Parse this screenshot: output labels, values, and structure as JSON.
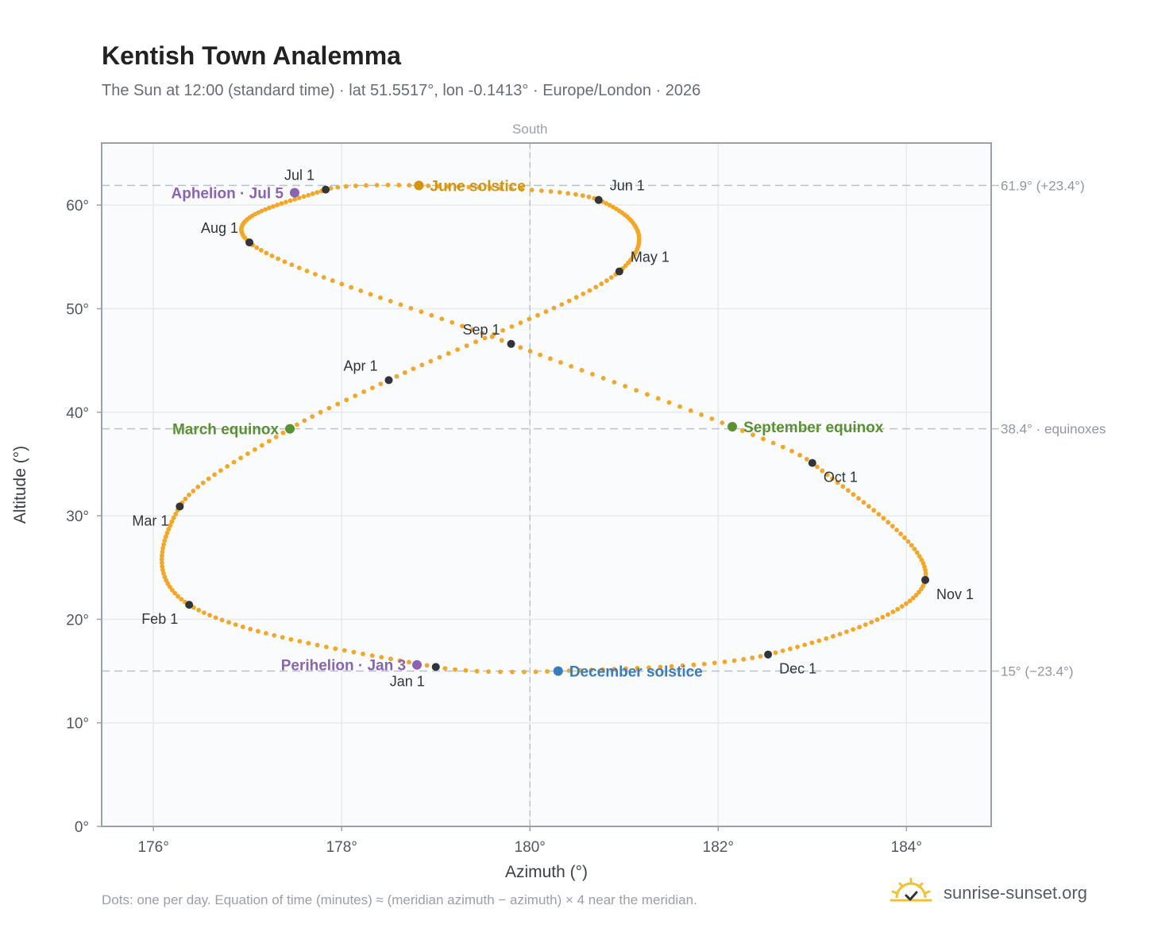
{
  "title": "Kentish Town Analemma",
  "subtitle": "The Sun at 12:00 (standard time) · lat 51.5517°, lon -0.1413° · Europe/London · 2026",
  "footnote": "Dots: one per day. Equation of time (minutes) ≈ (meridian azimuth − azimuth) × 4 near the meridian.",
  "brand": {
    "name": "sunrise-sunset.org",
    "icon": "sun-logo-icon"
  },
  "colors": {
    "path": "#f5a623",
    "month_marker": "#2f353b",
    "solstice_june": "#d4940c",
    "solstice_december": "#3a7bbf",
    "equinox": "#5a9131",
    "apsis": "#8a63b5",
    "reference_line": "#b8c2cc",
    "plot_background": "#f9fbfd",
    "grid": "#e6eaee",
    "frame": "#98a2ae"
  },
  "chart_data": {
    "type": "scatter",
    "title": "Kentish Town Analemma",
    "subtitle": "The Sun at 12:00 (standard time) · lat 51.5517°, lon -0.1413° · Europe/London · 2026",
    "xlabel": "Azimuth (°)",
    "ylabel": "Altitude (°)",
    "xlim": [
      175.45,
      184.9
    ],
    "ylim": [
      0,
      66
    ],
    "x_ticks": [
      176,
      178,
      180,
      182,
      184
    ],
    "x_tick_labels": [
      "176°",
      "178°",
      "180°",
      "182°",
      "184°"
    ],
    "y_ticks": [
      0,
      10,
      20,
      30,
      40,
      50,
      60
    ],
    "y_tick_labels": [
      "0°",
      "10°",
      "20°",
      "30°",
      "40°",
      "50°",
      "60°"
    ],
    "grid": true,
    "meridian": {
      "azimuth": 180,
      "label": "South"
    },
    "reference_lines": [
      {
        "altitude": 61.9,
        "label": "61.9° (+23.4°)"
      },
      {
        "altitude": 38.4,
        "label": "38.4° · equinoxes"
      },
      {
        "altitude": 15.0,
        "label": "15° (−23.4°)"
      }
    ],
    "series": [
      {
        "kind": "daily-path",
        "points_per_year": 365,
        "anchors": [
          {
            "day": 1,
            "az": 179.0,
            "alt": 15.4
          },
          {
            "day": 32,
            "az": 176.38,
            "alt": 21.4
          },
          {
            "day": 60,
            "az": 176.28,
            "alt": 30.9
          },
          {
            "day": 79,
            "az": 177.45,
            "alt": 38.4
          },
          {
            "day": 91,
            "az": 178.5,
            "alt": 43.1
          },
          {
            "day": 121,
            "az": 180.95,
            "alt": 53.6
          },
          {
            "day": 152,
            "az": 180.73,
            "alt": 60.5
          },
          {
            "day": 172,
            "az": 178.82,
            "alt": 61.9
          },
          {
            "day": 182,
            "az": 177.83,
            "alt": 61.5
          },
          {
            "day": 213,
            "az": 177.02,
            "alt": 56.4
          },
          {
            "day": 244,
            "az": 179.8,
            "alt": 46.6
          },
          {
            "day": 265,
            "az": 182.15,
            "alt": 38.6
          },
          {
            "day": 274,
            "az": 183.0,
            "alt": 35.1
          },
          {
            "day": 305,
            "az": 184.2,
            "alt": 23.8
          },
          {
            "day": 335,
            "az": 182.53,
            "alt": 16.6
          },
          {
            "day": 355,
            "az": 180.3,
            "alt": 15.0
          }
        ]
      }
    ],
    "month_markers": [
      {
        "label": "Jan 1",
        "az": 179.0,
        "alt": 15.4,
        "label_pos": "below-left"
      },
      {
        "label": "Feb 1",
        "az": 176.38,
        "alt": 21.4,
        "label_pos": "below-left"
      },
      {
        "label": "Mar 1",
        "az": 176.28,
        "alt": 30.9,
        "label_pos": "below-left"
      },
      {
        "label": "Apr 1",
        "az": 178.5,
        "alt": 43.1,
        "label_pos": "above-left"
      },
      {
        "label": "May 1",
        "az": 180.95,
        "alt": 53.6,
        "label_pos": "above-right"
      },
      {
        "label": "Jun 1",
        "az": 180.73,
        "alt": 60.5,
        "label_pos": "above-right"
      },
      {
        "label": "Jul 1",
        "az": 177.83,
        "alt": 61.5,
        "label_pos": "above-left"
      },
      {
        "label": "Aug 1",
        "az": 177.02,
        "alt": 56.4,
        "label_pos": "above-left"
      },
      {
        "label": "Sep 1",
        "az": 179.8,
        "alt": 46.6,
        "label_pos": "above-left"
      },
      {
        "label": "Oct 1",
        "az": 183.0,
        "alt": 35.1,
        "label_pos": "below-right"
      },
      {
        "label": "Nov 1",
        "az": 184.2,
        "alt": 23.8,
        "label_pos": "below-right"
      },
      {
        "label": "Dec 1",
        "az": 182.53,
        "alt": 16.6,
        "label_pos": "below-right"
      }
    ],
    "events": [
      {
        "label": "June solstice",
        "az": 178.82,
        "alt": 61.9,
        "color_key": "solstice_june",
        "label_pos": "right"
      },
      {
        "label": "December solstice",
        "az": 180.3,
        "alt": 15.0,
        "color_key": "solstice_december",
        "label_pos": "right"
      },
      {
        "label": "March equinox",
        "az": 177.45,
        "alt": 38.4,
        "color_key": "equinox",
        "label_pos": "left"
      },
      {
        "label": "September equinox",
        "az": 182.15,
        "alt": 38.6,
        "color_key": "equinox",
        "label_pos": "right"
      },
      {
        "label": "Aphelion · Jul 5",
        "az": 177.5,
        "alt": 61.2,
        "color_key": "apsis",
        "label_pos": "left"
      },
      {
        "label": "Perihelion · Jan 3",
        "az": 178.8,
        "alt": 15.6,
        "color_key": "apsis",
        "label_pos": "left"
      }
    ]
  }
}
